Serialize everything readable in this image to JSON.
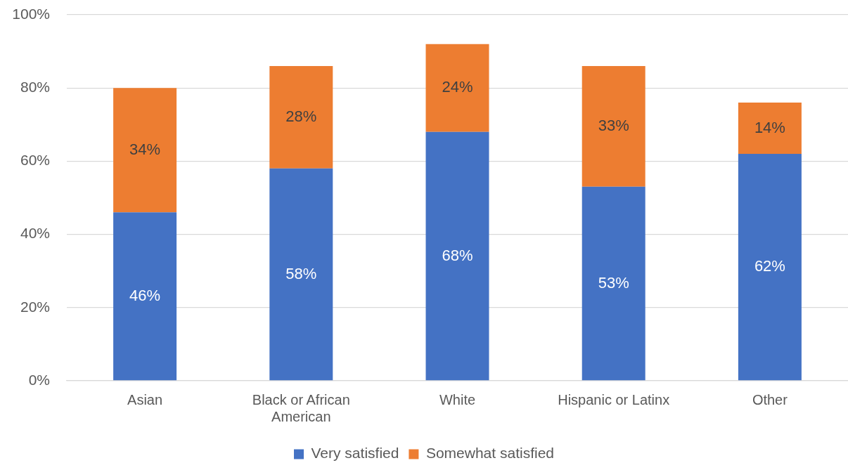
{
  "chart_data": {
    "type": "bar",
    "stacked": true,
    "categories": [
      "Asian",
      "Black or African American",
      "White",
      "Hispanic or Latinx",
      "Other"
    ],
    "series": [
      {
        "name": "Very satisfied",
        "color": "#4472c4",
        "values": [
          46,
          58,
          68,
          53,
          62
        ],
        "value_labels": [
          "46%",
          "58%",
          "68%",
          "53%",
          "62%"
        ]
      },
      {
        "name": "Somewhat satisfied",
        "color": "#ed7d31",
        "values": [
          34,
          28,
          24,
          33,
          14
        ],
        "value_labels": [
          "34%",
          "28%",
          "24%",
          "33%",
          "14%"
        ]
      }
    ],
    "ylim": [
      0,
      100
    ],
    "yticks": [
      {
        "value": 0,
        "label": "0%"
      },
      {
        "value": 20,
        "label": "20%"
      },
      {
        "value": 40,
        "label": "40%"
      },
      {
        "value": 60,
        "label": "60%"
      },
      {
        "value": 80,
        "label": "80%"
      },
      {
        "value": 100,
        "label": "100%"
      }
    ],
    "grid": "y",
    "legend": "bottom"
  }
}
